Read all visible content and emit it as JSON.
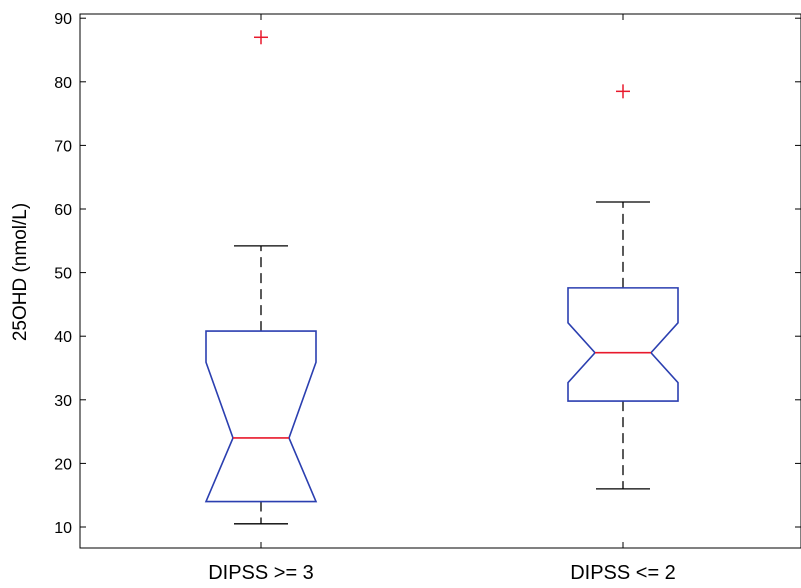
{
  "chart_data": {
    "type": "box",
    "title": "",
    "xlabel": "",
    "ylabel": "25OHD (nmol/L)",
    "ylim": [
      6.5,
      90.5
    ],
    "yticks": [
      10,
      20,
      30,
      40,
      50,
      60,
      70,
      80,
      90
    ],
    "notched": true,
    "grid": false,
    "colors": {
      "box": "#2b3fb0",
      "median": "#e8192c",
      "whisker": "#000000",
      "outlier": "#e8192c"
    },
    "categories": [
      "DIPSS >= 3",
      "DIPSS <= 2"
    ],
    "boxes": [
      {
        "label": "DIPSS >= 3",
        "whisker_low": 10.5,
        "q1": 14,
        "median": 24,
        "q3": 40.8,
        "whisker_high": 54.2,
        "notch_low": 13.9,
        "notch_high": 35.9,
        "outliers": [
          87
        ]
      },
      {
        "label": "DIPSS <= 2",
        "whisker_low": 16,
        "q1": 29.8,
        "median": 37.4,
        "q3": 47.6,
        "whisker_high": 61.1,
        "notch_low": 32.7,
        "notch_high": 42.1,
        "outliers": [
          78.5
        ]
      }
    ]
  }
}
